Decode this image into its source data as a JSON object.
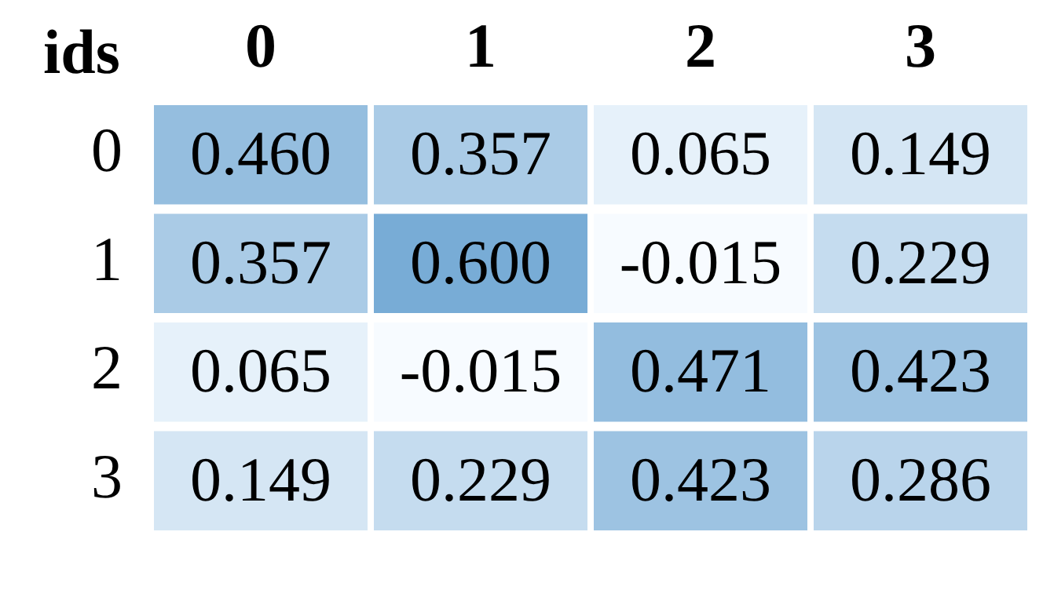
{
  "chart_data": {
    "type": "heatmap",
    "ylabel": "ids",
    "categories": [
      "0",
      "1",
      "2",
      "3"
    ],
    "y_categories": [
      "0",
      "1",
      "2",
      "3"
    ],
    "cells": [
      [
        0.46,
        0.357,
        0.065,
        0.149
      ],
      [
        0.357,
        0.6,
        -0.015,
        0.229
      ],
      [
        0.065,
        -0.015,
        0.471,
        0.423
      ],
      [
        0.149,
        0.229,
        0.423,
        0.286
      ]
    ],
    "cell_labels": [
      [
        "0.460",
        "0.357",
        "0.065",
        "0.149"
      ],
      [
        "0.357",
        "0.600",
        "-0.015",
        "0.229"
      ],
      [
        "0.065",
        "-0.015",
        "0.471",
        "0.423"
      ],
      [
        "0.149",
        "0.229",
        "0.423",
        "0.286"
      ]
    ]
  }
}
